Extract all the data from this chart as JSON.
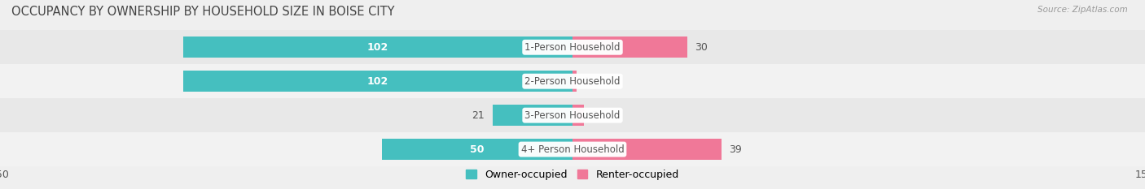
{
  "title": "OCCUPANCY BY OWNERSHIP BY HOUSEHOLD SIZE IN BOISE CITY",
  "source": "Source: ZipAtlas.com",
  "categories": [
    "1-Person Household",
    "2-Person Household",
    "3-Person Household",
    "4+ Person Household"
  ],
  "owner_values": [
    102,
    102,
    21,
    50
  ],
  "renter_values": [
    30,
    1,
    3,
    39
  ],
  "owner_color": "#45BFBF",
  "renter_color": "#F07898",
  "axis_max": 150,
  "legend_owner": "Owner-occupied",
  "legend_renter": "Renter-occupied",
  "bar_height": 0.62,
  "title_fontsize": 10.5,
  "axis_tick_fontsize": 9,
  "bar_label_fontsize": 9,
  "category_fontsize": 8.5,
  "row_colors": [
    "#e8e8e8",
    "#f2f2f2",
    "#e8e8e8",
    "#f2f2f2"
  ],
  "bg_color": "#efefef",
  "white": "#ffffff",
  "dark_label": "#555555"
}
